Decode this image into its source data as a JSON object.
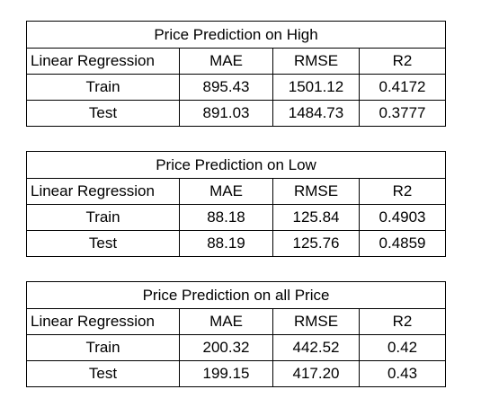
{
  "tables": [
    {
      "title": "Price Prediction on High",
      "header": {
        "model": "Linear Regression",
        "mae": "MAE",
        "rmse": "RMSE",
        "r2": "R2"
      },
      "rows": [
        {
          "label": "Train",
          "mae": "895.43",
          "rmse": "1501.12",
          "r2": "0.4172"
        },
        {
          "label": "Test",
          "mae": "891.03",
          "rmse": "1484.73",
          "r2": "0.3777"
        }
      ]
    },
    {
      "title": "Price Prediction on Low",
      "header": {
        "model": "Linear Regression",
        "mae": "MAE",
        "rmse": "RMSE",
        "r2": "R2"
      },
      "rows": [
        {
          "label": "Train",
          "mae": "88.18",
          "rmse": "125.84",
          "r2": "0.4903"
        },
        {
          "label": "Test",
          "mae": "88.19",
          "rmse": "125.76",
          "r2": "0.4859"
        }
      ]
    },
    {
      "title": "Price Prediction on all Price",
      "header": {
        "model": "Linear Regression",
        "mae": "MAE",
        "rmse": "RMSE",
        "r2": "R2"
      },
      "rows": [
        {
          "label": "Train",
          "mae": "200.32",
          "rmse": "442.52",
          "r2": "0.42"
        },
        {
          "label": "Test",
          "mae": "199.15",
          "rmse": "417.20",
          "r2": "0.43"
        }
      ]
    }
  ]
}
